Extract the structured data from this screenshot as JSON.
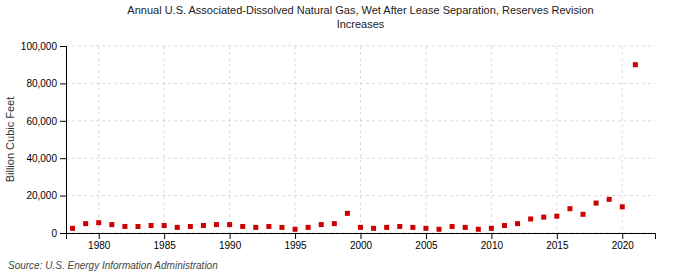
{
  "chart_data": {
    "type": "scatter",
    "title": "Annual U.S. Associated-Dissolved Natural Gas, Wet After Lease Separation, Reserves Revision\nIncreases",
    "ylabel": "Billion Cubic Feet",
    "annotation": "Source: U.S. Energy Information Administration",
    "color": "#cc0000",
    "marker": "square",
    "x": [
      1978,
      1979,
      1980,
      1981,
      1982,
      1983,
      1984,
      1985,
      1986,
      1987,
      1988,
      1989,
      1990,
      1991,
      1992,
      1993,
      1994,
      1995,
      1996,
      1997,
      1998,
      1999,
      2000,
      2001,
      2002,
      2003,
      2004,
      2005,
      2006,
      2007,
      2008,
      2009,
      2010,
      2011,
      2012,
      2013,
      2014,
      2015,
      2016,
      2017,
      2018,
      2019,
      2020,
      2021
    ],
    "values": [
      2500,
      5000,
      5500,
      4500,
      3500,
      3500,
      4000,
      4000,
      3000,
      3500,
      4000,
      4500,
      4500,
      3500,
      3000,
      3500,
      3000,
      2000,
      3000,
      4500,
      5000,
      10500,
      3000,
      2500,
      3000,
      3500,
      3000,
      2500,
      2000,
      3500,
      3000,
      2000,
      2500,
      4000,
      5000,
      7500,
      8500,
      9000,
      13000,
      10000,
      16000,
      18000,
      14000,
      90000
    ],
    "xlim": [
      1977.5,
      2022.5
    ],
    "xticks": [
      1980,
      1985,
      1990,
      1995,
      2000,
      2005,
      2010,
      2015,
      2020
    ],
    "ylim": [
      0,
      100000
    ],
    "yticks": [
      0,
      {
        "value": 20000,
        "label": "20,000"
      },
      {
        "value": 40000,
        "label": "40,000"
      },
      {
        "value": 60000,
        "label": "60,000"
      },
      {
        "value": 80000,
        "label": "80,000"
      },
      {
        "value": 100000,
        "label": "100,000"
      }
    ],
    "grid": true
  }
}
